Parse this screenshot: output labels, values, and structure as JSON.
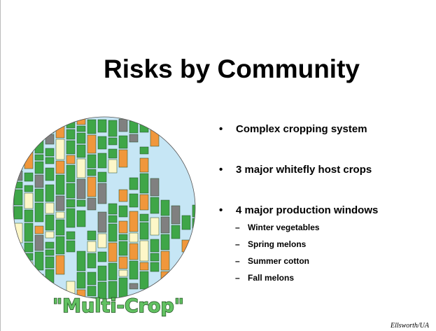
{
  "title": "Risks by Community",
  "bullets": [
    {
      "text": "Complex cropping system"
    },
    {
      "text": "3 major whitefly host crops"
    },
    {
      "text": "4 major production windows",
      "subitems": [
        "Winter vegetables",
        "Spring melons",
        "Summer cotton",
        "Fall melons"
      ]
    }
  ],
  "map_label": "\"Multi-Crop\"",
  "credit": "Ellsworth/UA"
}
